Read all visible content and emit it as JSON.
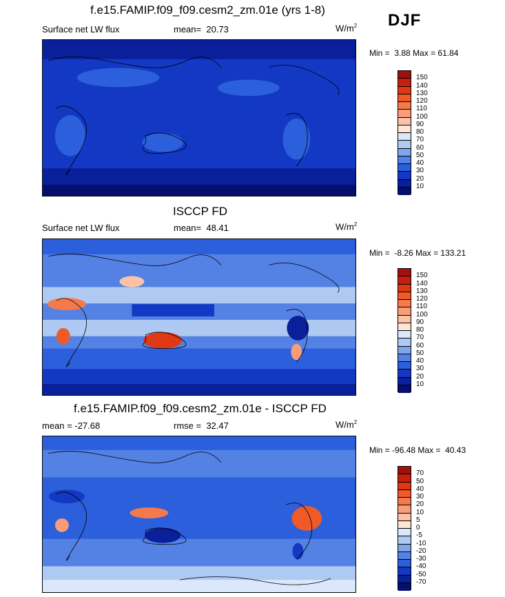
{
  "season": "DJF",
  "chart_data": [
    {
      "type": "heatmap",
      "title": "f.e15.FAMIP.f09_f09.cesm2_zm.01e (yrs 1-8)",
      "variable": "Surface net LW flux",
      "mean_label": "mean=",
      "mean": "20.73",
      "units_base": "W/m",
      "units_exp": "2",
      "min_label": "Min =",
      "min": "3.88",
      "max_label": "Max =",
      "max": "61.84",
      "colorbar_levels": [
        "150",
        "140",
        "130",
        "120",
        "110",
        "100",
        "90",
        "80",
        "70",
        "60",
        "50",
        "40",
        "30",
        "20",
        "10"
      ],
      "colorbar_colors": [
        "#a01010",
        "#c81e10",
        "#e03814",
        "#ef5a28",
        "#f47a4c",
        "#f89c7a",
        "#fbc2a8",
        "#fde5d8",
        "#dbe8fb",
        "#aec9f2",
        "#7ea6ea",
        "#5482e4",
        "#2c5fdb",
        "#1238c4",
        "#0a1f9a",
        "#050f6e"
      ]
    },
    {
      "type": "heatmap",
      "title": "ISCCP FD",
      "variable": "Surface net LW flux",
      "mean_label": "mean=",
      "mean": "48.41",
      "units_base": "W/m",
      "units_exp": "2",
      "min_label": "Min =",
      "min": "-8.26",
      "max_label": "Max =",
      "max": "133.21",
      "colorbar_levels": [
        "150",
        "140",
        "130",
        "120",
        "110",
        "100",
        "90",
        "80",
        "70",
        "60",
        "50",
        "40",
        "30",
        "20",
        "10"
      ],
      "colorbar_colors": [
        "#a01010",
        "#c81e10",
        "#e03814",
        "#ef5a28",
        "#f47a4c",
        "#f89c7a",
        "#fbc2a8",
        "#fde5d8",
        "#dbe8fb",
        "#aec9f2",
        "#7ea6ea",
        "#5482e4",
        "#2c5fdb",
        "#1238c4",
        "#0a1f9a",
        "#050f6e"
      ]
    },
    {
      "type": "heatmap",
      "title": "f.e15.FAMIP.f09_f09.cesm2_zm.01e - ISCCP FD",
      "mean_label": "mean =",
      "mean": "-27.68",
      "rmse_label": "rmse =",
      "rmse": "32.47",
      "units_base": "W/m",
      "units_exp": "2",
      "min_label": "Min =",
      "min": "-96.48",
      "max_label": "Max =",
      "max": "40.43",
      "colorbar_levels": [
        "70",
        "50",
        "40",
        "30",
        "20",
        "10",
        "5",
        "0",
        "-5",
        "-10",
        "-20",
        "-30",
        "-40",
        "-50",
        "-70"
      ],
      "colorbar_colors": [
        "#a01010",
        "#c81e10",
        "#e03814",
        "#ef5a28",
        "#f47a4c",
        "#f89c7a",
        "#fbc2a8",
        "#fde5d8",
        "#dbe8fb",
        "#aec9f2",
        "#7ea6ea",
        "#5482e4",
        "#2c5fdb",
        "#1238c4",
        "#0a1f9a",
        "#050f6e"
      ]
    }
  ]
}
